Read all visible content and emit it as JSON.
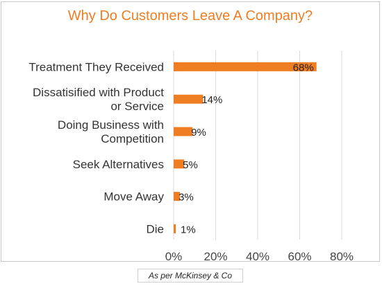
{
  "chart_data": {
    "type": "bar",
    "orientation": "horizontal",
    "title": "Why Do Customers Leave A Company?",
    "categories": [
      [
        "Treatment They Received"
      ],
      [
        "Dissatisified with Product",
        "or Service"
      ],
      [
        "Doing Business with",
        "Competition"
      ],
      [
        "Seek Alternatives"
      ],
      [
        "Move Away"
      ],
      [
        "Die"
      ]
    ],
    "values": [
      68,
      14,
      9,
      5,
      3,
      1
    ],
    "data_labels": [
      "68%",
      "14%",
      "9%",
      "5%",
      "3%",
      "1%"
    ],
    "xlim": [
      0,
      80
    ],
    "xticks": [
      0,
      20,
      40,
      60,
      80
    ],
    "xtick_labels": [
      "0%",
      "20%",
      "40%",
      "60%",
      "80%"
    ],
    "bar_color": "#ef7d22",
    "grid": "vertical",
    "legend": "none"
  },
  "footnote": "As per McKinsey & Co"
}
